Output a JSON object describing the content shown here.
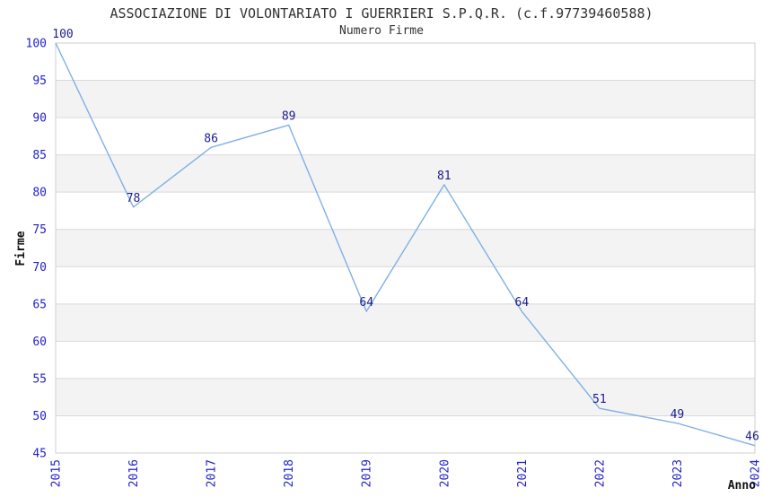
{
  "chart_data": {
    "type": "line",
    "title": "ASSOCIAZIONE DI VOLONTARIATO I GUERRIERI S.P.Q.R. (c.f.97739460588)",
    "subtitle": "Numero Firme",
    "xlabel": "Anno",
    "ylabel": "Firme",
    "categories": [
      "2015",
      "2016",
      "2017",
      "2018",
      "2019",
      "2020",
      "2021",
      "2022",
      "2023",
      "2024"
    ],
    "series": [
      {
        "name": "Numero Firme",
        "values": [
          100,
          78,
          86,
          89,
          64,
          81,
          64,
          51,
          49,
          46
        ]
      }
    ],
    "ylim": [
      45,
      100
    ],
    "ytick_step": 5,
    "yticks": [
      45,
      50,
      55,
      60,
      65,
      70,
      75,
      80,
      85,
      90,
      95,
      100
    ],
    "grid": true,
    "alternating_bands": true,
    "point_labels_visible": true,
    "legend_position": "none",
    "x_tick_rotation_deg": -90,
    "colors": {
      "line": "#7fb0e6",
      "point_label": "#1c1c8c",
      "tick_label": "#2222cc",
      "grid_line": "#d9d9d9",
      "band_fill": "#f3f3f3",
      "plot_border": "#cfcfcf",
      "title_text": "#333333",
      "axis_label_text": "#111111",
      "background": "#ffffff"
    }
  }
}
